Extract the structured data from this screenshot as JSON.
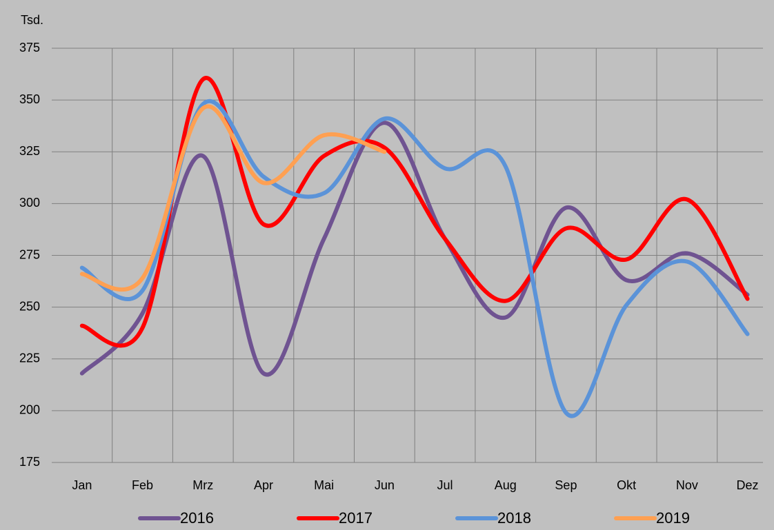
{
  "chart_data": {
    "type": "line",
    "y_label": "Tsd.",
    "categories": [
      "Jan",
      "Feb",
      "Mrz",
      "Apr",
      "Mai",
      "Jun",
      "Jul",
      "Aug",
      "Sep",
      "Okt",
      "Nov",
      "Dez"
    ],
    "series": [
      {
        "name": "2016",
        "color": "#6f5391",
        "values": [
          218,
          247,
          323,
          218,
          283,
          339,
          283,
          245,
          298,
          263,
          276,
          256
        ]
      },
      {
        "name": "2017",
        "color": "#ff0000",
        "values": [
          241,
          240,
          360,
          290,
          323,
          327,
          283,
          253,
          288,
          273,
          302,
          254
        ]
      },
      {
        "name": "2018",
        "color": "#5b93d8",
        "values": [
          269,
          258,
          348,
          313,
          305,
          341,
          317,
          318,
          199,
          251,
          272,
          237
        ]
      },
      {
        "name": "2019",
        "color": "#ffa052",
        "values": [
          266,
          264,
          346,
          310,
          333,
          325,
          null,
          null,
          null,
          null,
          null,
          null
        ]
      }
    ],
    "ylim": [
      175,
      375
    ],
    "yticks": [
      175,
      200,
      225,
      250,
      275,
      300,
      325,
      350,
      375
    ],
    "grid": true,
    "smooth": true,
    "legend": "bottom"
  }
}
